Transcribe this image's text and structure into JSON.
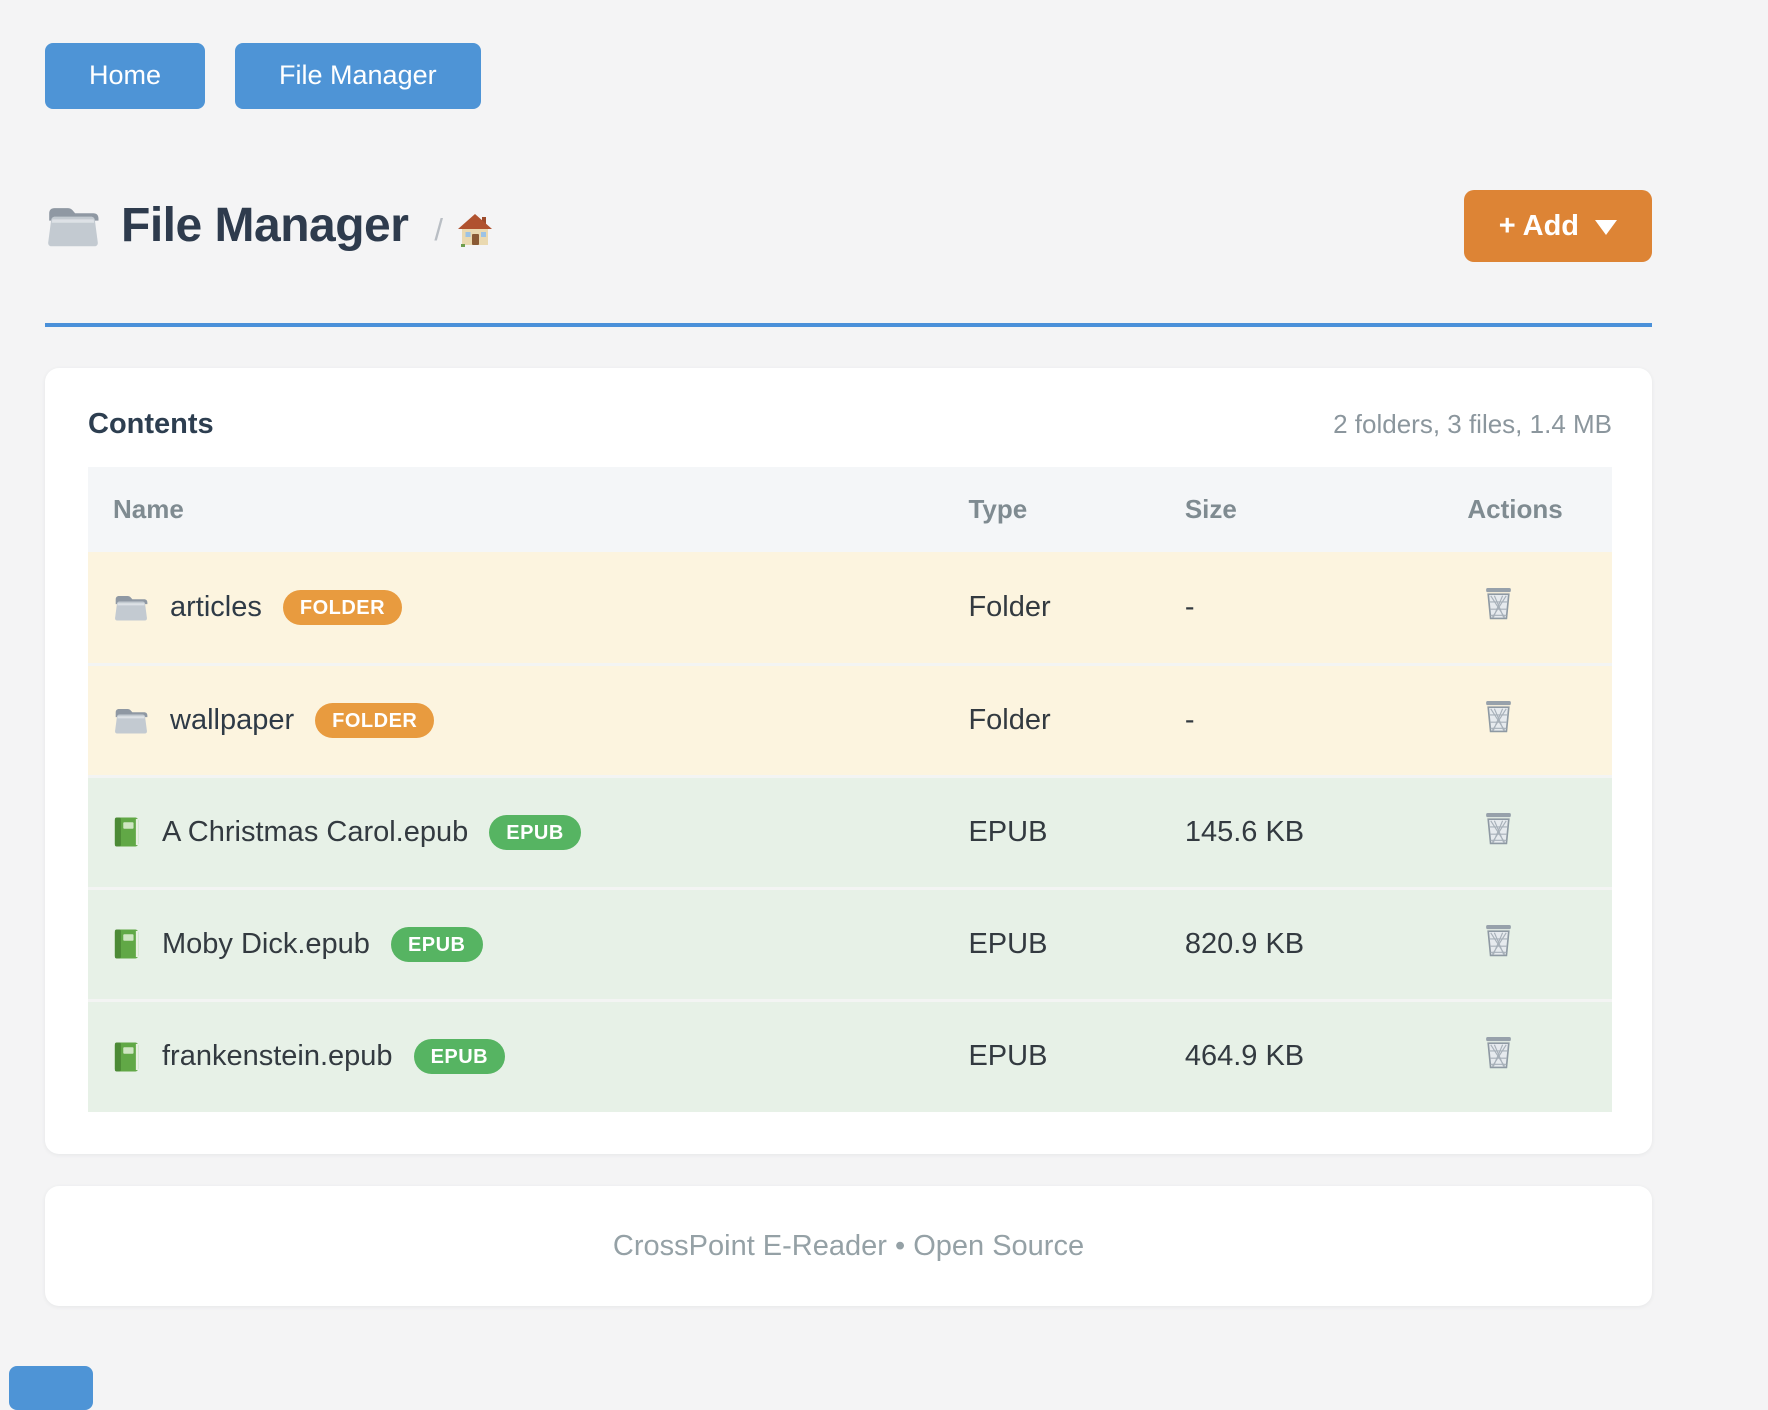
{
  "nav": {
    "buttons": [
      {
        "label": "Home"
      },
      {
        "label": "File Manager"
      }
    ]
  },
  "header": {
    "title": "File Manager",
    "breadcrumb_separator": "/",
    "add_button_label": "+ Add"
  },
  "contents_card": {
    "title": "Contents",
    "summary": "2 folders, 3 files, 1.4 MB",
    "table": {
      "columns": [
        "Name",
        "Type",
        "Size",
        "Actions"
      ],
      "rows": [
        {
          "name": "articles",
          "badge": "FOLDER",
          "row_style": "folder",
          "icon": "folder-icon",
          "type": "Folder",
          "size": "-"
        },
        {
          "name": "wallpaper",
          "badge": "FOLDER",
          "row_style": "folder",
          "icon": "folder-icon",
          "type": "Folder",
          "size": "-"
        },
        {
          "name": "A Christmas Carol.epub",
          "badge": "EPUB",
          "row_style": "epub",
          "icon": "book-icon",
          "type": "EPUB",
          "size": "145.6 KB"
        },
        {
          "name": "Moby Dick.epub",
          "badge": "EPUB",
          "row_style": "epub",
          "icon": "book-icon",
          "type": "EPUB",
          "size": "820.9 KB"
        },
        {
          "name": "frankenstein.epub",
          "badge": "EPUB",
          "row_style": "epub",
          "icon": "book-icon",
          "type": "EPUB",
          "size": "464.9 KB"
        }
      ]
    }
  },
  "footer": {
    "text": "CrossPoint E-Reader • Open Source"
  },
  "colors": {
    "accent_blue": "#4e94d6",
    "underline_blue": "#4a90d9",
    "accent_orange": "#dd8435",
    "badge_folder": "#e89b3f",
    "badge_epub": "#56b462",
    "row_folder_bg": "#fcf4df",
    "row_epub_bg": "#e7f1e7",
    "page_bg": "#f4f4f5"
  }
}
